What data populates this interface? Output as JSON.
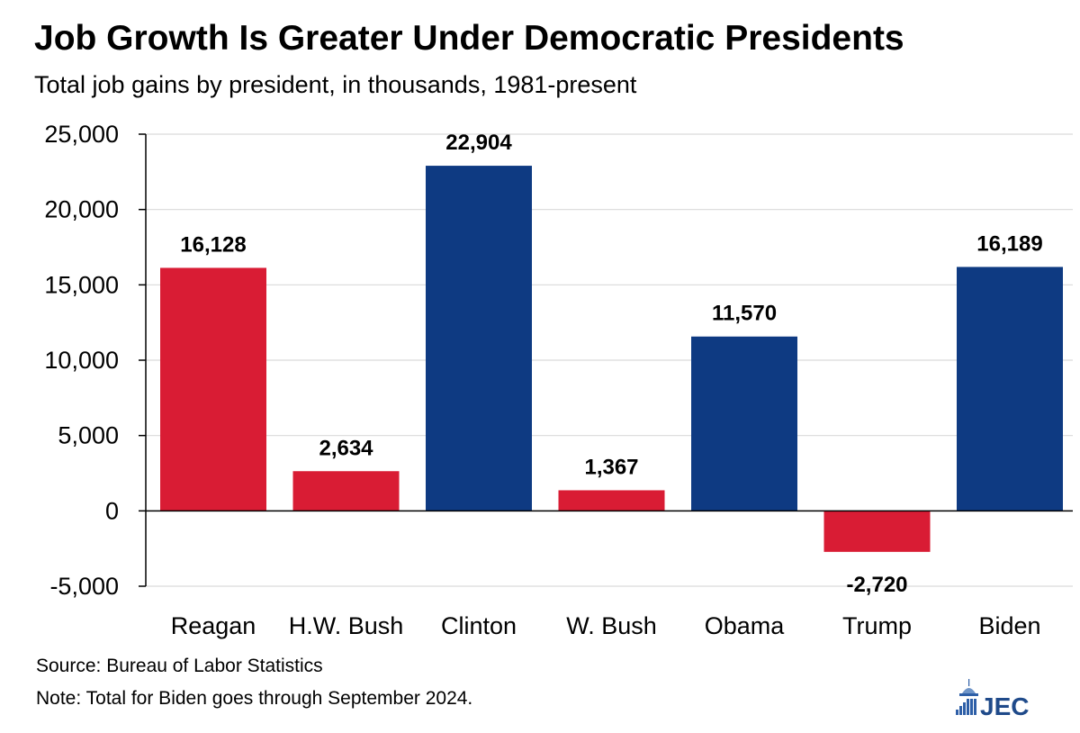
{
  "header": {
    "title": "Job Growth Is Greater Under Democratic Presidents",
    "subtitle": "Total job gains by president, in thousands, 1981-present"
  },
  "chart_data": {
    "type": "bar",
    "title": "Job Growth Is Greater Under Democratic Presidents",
    "subtitle": "Total job gains by president, in thousands, 1981-present",
    "categories": [
      "Reagan",
      "H.W. Bush",
      "Clinton",
      "W. Bush",
      "Obama",
      "Trump",
      "Biden"
    ],
    "values": [
      16128,
      2634,
      22904,
      1367,
      11570,
      -2720,
      16189
    ],
    "data_labels": [
      "16,128",
      "2,634",
      "22,904",
      "1,367",
      "11,570",
      "-2,720",
      "16,189"
    ],
    "bar_colors": [
      "#d91c34",
      "#d91c34",
      "#0e3a82",
      "#d91c34",
      "#0e3a82",
      "#d91c34",
      "#0e3a82"
    ],
    "yticks": [
      25000,
      20000,
      15000,
      10000,
      5000,
      0,
      -5000
    ],
    "ytick_labels": [
      "25,000",
      "20,000",
      "15,000",
      "10,000",
      "5,000",
      "0",
      "-5,000"
    ],
    "ylim": [
      -5000,
      25000
    ],
    "grid": true,
    "xlabel": "",
    "ylabel": ""
  },
  "footer": {
    "source": "Source: Bureau of Labor Statistics",
    "note": "Note: Total for Biden goes through September 2024.",
    "logo_text": "JEC"
  },
  "colors": {
    "republican": "#d91c34",
    "democrat": "#0e3a82",
    "grid": "#d9d9d9",
    "logo_blue": "#2e5fa7"
  }
}
